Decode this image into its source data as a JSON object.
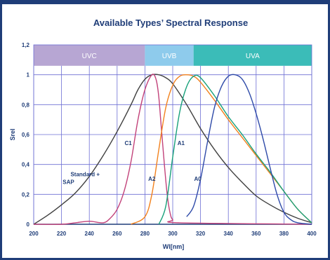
{
  "chart_data": {
    "type": "line",
    "title": "Available Types’ Spectral Response",
    "xlabel": "Wl[nm]",
    "ylabel": "Srel",
    "xlim": [
      200,
      400
    ],
    "ylim": [
      0,
      1.2
    ],
    "x_ticks": [
      "200",
      "220",
      "240",
      "260",
      "280",
      "300",
      "320",
      "340",
      "360",
      "380",
      "400"
    ],
    "y_ticks": [
      "0",
      "0,2",
      "0,4",
      "0,6",
      "0,8",
      "1",
      "1,2"
    ],
    "grid": true,
    "bands": [
      {
        "label": "UVC",
        "from": 200,
        "to": 280,
        "color": "#b7a6d3"
      },
      {
        "label": "UVB",
        "from": 280,
        "to": 315,
        "color": "#8ecbec"
      },
      {
        "label": "UVA",
        "from": 315,
        "to": 400,
        "color": "#3bbcb8"
      }
    ],
    "series": [
      {
        "name": "Standard + SAP",
        "color": "#404040",
        "x": [
          200,
          210,
          220,
          230,
          240,
          250,
          260,
          270,
          275,
          280,
          285,
          290,
          295,
          300,
          310,
          320,
          330,
          340,
          350,
          360,
          370,
          380,
          390,
          400
        ],
        "y": [
          0.0,
          0.06,
          0.13,
          0.21,
          0.32,
          0.46,
          0.62,
          0.8,
          0.9,
          0.97,
          1.0,
          1.0,
          0.98,
          0.94,
          0.8,
          0.64,
          0.5,
          0.38,
          0.28,
          0.19,
          0.13,
          0.08,
          0.04,
          0.01
        ]
      },
      {
        "name": "C1",
        "color": "#c2427a",
        "x": [
          200,
          220,
          230,
          240,
          250,
          255,
          260,
          265,
          270,
          275,
          280,
          285,
          288,
          290,
          292,
          294,
          296,
          298,
          300,
          305,
          400
        ],
        "y": [
          0.0,
          0.0,
          0.01,
          0.02,
          0.01,
          0.04,
          0.1,
          0.22,
          0.42,
          0.7,
          0.9,
          1.0,
          0.97,
          0.85,
          0.62,
          0.4,
          0.2,
          0.08,
          0.03,
          0.01,
          0.0
        ]
      },
      {
        "name": "A2",
        "color": "#f2811d",
        "x": [
          270,
          280,
          285,
          290,
          295,
          300,
          305,
          310,
          315,
          320,
          330,
          340,
          350,
          360,
          370,
          380,
          390,
          400
        ],
        "y": [
          0.0,
          0.05,
          0.2,
          0.5,
          0.78,
          0.93,
          0.99,
          1.0,
          0.99,
          0.95,
          0.83,
          0.7,
          0.58,
          0.46,
          0.34,
          0.22,
          0.1,
          0.01
        ]
      },
      {
        "name": "A1",
        "color": "#17a07a",
        "x": [
          290,
          295,
          300,
          305,
          310,
          315,
          320,
          330,
          340,
          350,
          360,
          370,
          380,
          390,
          400
        ],
        "y": [
          0.0,
          0.12,
          0.45,
          0.75,
          0.92,
          0.99,
          0.98,
          0.86,
          0.72,
          0.6,
          0.47,
          0.35,
          0.22,
          0.1,
          0.01
        ]
      },
      {
        "name": "A0",
        "color": "#2e4aa8",
        "x": [
          310,
          315,
          320,
          325,
          330,
          335,
          340,
          345,
          350,
          355,
          360,
          365,
          370,
          375,
          380,
          385,
          390,
          400
        ],
        "y": [
          0.05,
          0.12,
          0.3,
          0.55,
          0.78,
          0.92,
          0.99,
          1.0,
          0.97,
          0.88,
          0.74,
          0.57,
          0.38,
          0.2,
          0.08,
          0.03,
          0.01,
          0.0
        ]
      }
    ],
    "annotations": [
      {
        "text": "Standard +",
        "x": 237,
        "y": 0.32
      },
      {
        "text": "SAP",
        "x": 225,
        "y": 0.27
      },
      {
        "text": "C1",
        "x": 268,
        "y": 0.53
      },
      {
        "text": "A2",
        "x": 285,
        "y": 0.29
      },
      {
        "text": "A1",
        "x": 306,
        "y": 0.53
      },
      {
        "text": "A0",
        "x": 318,
        "y": 0.29
      }
    ]
  }
}
